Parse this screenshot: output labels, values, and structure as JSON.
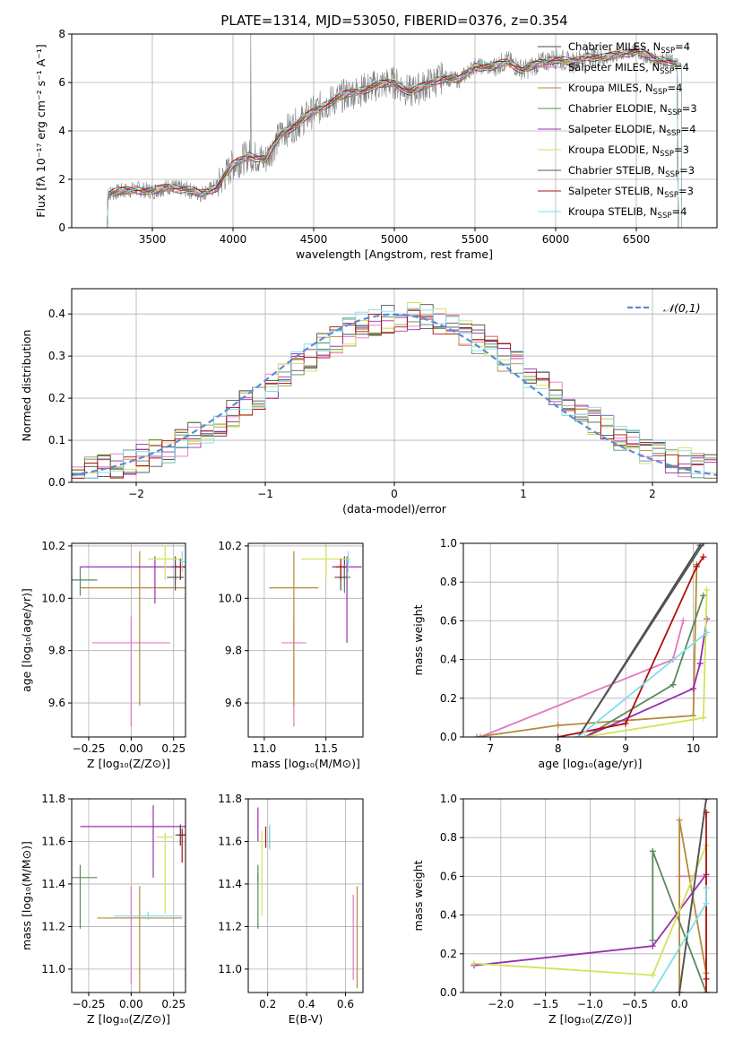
{
  "title": "PLATE=1314, MJD=53050, FIBERID=0376, z=0.354",
  "series": [
    {
      "name": "Chabrier MILES",
      "nssp": "4",
      "color": "#4a4a4a"
    },
    {
      "name": "Salpeter MILES",
      "nssp": "4",
      "color": "#e377c2"
    },
    {
      "name": "Kroupa MILES",
      "nssp": "4",
      "color": "#b58a3a"
    },
    {
      "name": "Chabrier ELODIE",
      "nssp": "3",
      "color": "#5a8a5a"
    },
    {
      "name": "Salpeter ELODIE",
      "nssp": "4",
      "color": "#9a2fb0"
    },
    {
      "name": "Kroupa ELODIE",
      "nssp": "3",
      "color": "#d4e157"
    },
    {
      "name": "Chabrier STELIB",
      "nssp": "3",
      "color": "#555555"
    },
    {
      "name": "Salpeter STELIB",
      "nssp": "3",
      "color": "#b01010"
    },
    {
      "name": "Kroupa STELIB",
      "nssp": "4",
      "color": "#80deea"
    }
  ],
  "chart_data": [
    {
      "id": "spectrum",
      "type": "line",
      "xlabel": "wavelength [Angstrom, rest frame]",
      "ylabel": "Flux [fλ 10⁻¹⁷ erg cm⁻² s⁻¹ A⁻¹]",
      "xlim": [
        3000,
        7000
      ],
      "ylim": [
        0,
        8
      ],
      "xticks": [
        3500,
        4000,
        4500,
        5000,
        5500,
        6000,
        6500
      ],
      "yticks": [
        0,
        2,
        4,
        6,
        8
      ],
      "x": [
        3220,
        3300,
        3400,
        3500,
        3600,
        3700,
        3800,
        3900,
        4000,
        4100,
        4200,
        4300,
        4400,
        4500,
        4600,
        4700,
        4800,
        4900,
        5000,
        5100,
        5200,
        5300,
        5400,
        5500,
        5600,
        5700,
        5800,
        5900,
        6000,
        6100,
        6200,
        6300,
        6400,
        6500,
        6600,
        6700,
        6780
      ],
      "y": [
        1.4,
        1.5,
        1.6,
        1.5,
        1.7,
        1.6,
        1.4,
        1.7,
        2.6,
        3.0,
        2.8,
        3.9,
        4.3,
        4.8,
        5.2,
        5.5,
        5.7,
        5.9,
        6.0,
        5.6,
        5.9,
        6.2,
        6.1,
        6.7,
        6.6,
        6.9,
        6.5,
        6.8,
        7.0,
        6.8,
        7.1,
        7.0,
        7.2,
        7.3,
        7.0,
        6.9,
        6.6
      ]
    },
    {
      "id": "residuals",
      "type": "step",
      "xlabel": "(data-model)/error",
      "ylabel": "Normed distribution",
      "legend": "𝒩(0,1)",
      "xlim": [
        -2.5,
        2.5
      ],
      "ylim": [
        0,
        0.46
      ],
      "xticks": [
        -2,
        -1,
        0,
        1,
        2
      ],
      "yticks": [
        0.0,
        0.1,
        0.2,
        0.3,
        0.4
      ],
      "bin_width": 0.1
    },
    {
      "id": "age_vs_Z",
      "type": "scatter",
      "xlabel": "Z [log₁₀(Z/Z⊙)]",
      "ylabel": "age  [log₁₀(age/yr)]",
      "xlim": [
        -0.35,
        0.32
      ],
      "ylim": [
        9.47,
        10.21
      ],
      "xticks": [
        -0.25,
        0.0,
        0.25
      ],
      "yticks": [
        9.6,
        9.8,
        10.0,
        10.2
      ],
      "points": [
        {
          "s": 0,
          "x": 0.26,
          "y": 10.12,
          "xe": 0.02,
          "yel": 0.05,
          "yeh": 0.04
        },
        {
          "s": 1,
          "x": 0.0,
          "y": 9.83,
          "xe": 0.23,
          "yel": 0.32,
          "yeh": 0.1
        },
        {
          "s": 2,
          "x": 0.05,
          "y": 10.04,
          "xe": 0.35,
          "yel": 0.45,
          "yeh": 0.14
        },
        {
          "s": 3,
          "x": -0.3,
          "y": 10.07,
          "xe": 0.1,
          "yel": 0.06,
          "yeh": 0.05
        },
        {
          "s": 4,
          "x": 0.14,
          "y": 10.12,
          "xe": 0.44,
          "yel": 0.14,
          "yeh": 0.04
        },
        {
          "s": 5,
          "x": 0.2,
          "y": 10.15,
          "xe": 0.1,
          "yel": 0.08,
          "yeh": 0.05
        },
        {
          "s": 6,
          "x": 0.26,
          "y": 10.08,
          "xe": 0.05,
          "yel": 0.05,
          "yeh": 0.05
        },
        {
          "s": 7,
          "x": 0.29,
          "y": 10.12,
          "xe": 0.03,
          "yel": 0.05,
          "yeh": 0.03
        },
        {
          "s": 8,
          "x": 0.3,
          "y": 10.14,
          "xe": 0.02,
          "yel": 0.04,
          "yeh": 0.04
        }
      ]
    },
    {
      "id": "age_vs_mass",
      "type": "scatter",
      "xlabel": "mass [log₁₀(M/M⊙)]",
      "ylabel": "",
      "xlim": [
        10.87,
        11.8
      ],
      "ylim": [
        9.47,
        10.21
      ],
      "xticks": [
        11.0,
        11.5
      ],
      "yticks": [
        9.6,
        9.8,
        10.0,
        10.2
      ],
      "points": [
        {
          "s": 0,
          "x": 11.65,
          "y": 10.12,
          "xe": 0.03,
          "yel": 0.05,
          "yeh": 0.04
        },
        {
          "s": 1,
          "x": 11.24,
          "y": 9.83,
          "xe": 0.1,
          "yel": 0.32,
          "yeh": 0.1
        },
        {
          "s": 2,
          "x": 11.24,
          "y": 10.04,
          "xe": 0.2,
          "yel": 0.45,
          "yeh": 0.14
        },
        {
          "s": 3,
          "x": 11.65,
          "y": 10.08,
          "xe": 0.05,
          "yel": 0.06,
          "yeh": 0.05
        },
        {
          "s": 4,
          "x": 11.67,
          "y": 10.12,
          "xe": 0.12,
          "yel": 0.29,
          "yeh": 0.04
        },
        {
          "s": 5,
          "x": 11.5,
          "y": 10.15,
          "xe": 0.2,
          "yel": 0.08,
          "yeh": 0.05
        },
        {
          "s": 6,
          "x": 11.62,
          "y": 10.08,
          "xe": 0.05,
          "yel": 0.05,
          "yeh": 0.05
        },
        {
          "s": 7,
          "x": 11.62,
          "y": 10.12,
          "xe": 0.04,
          "yel": 0.05,
          "yeh": 0.03
        },
        {
          "s": 8,
          "x": 11.68,
          "y": 10.14,
          "xe": 0.02,
          "yel": 0.04,
          "yeh": 0.04
        }
      ]
    },
    {
      "id": "weight_vs_age",
      "type": "line",
      "xlabel": "age  [log₁₀(age/yr)]",
      "ylabel": "mass weight",
      "xlim": [
        6.6,
        10.35
      ],
      "ylim": [
        0,
        1
      ],
      "xticks": [
        7,
        8,
        9,
        10
      ],
      "yticks": [
        0.0,
        0.2,
        0.4,
        0.6,
        0.8,
        1.0
      ],
      "lines": [
        {
          "s": 0,
          "x": [
            8.3,
            10.1
          ],
          "y": [
            0.0,
            0.99
          ]
        },
        {
          "s": 1,
          "x": [
            6.85,
            9.7,
            9.85
          ],
          "y": [
            0.0,
            0.4,
            0.6
          ]
        },
        {
          "s": 2,
          "x": [
            6.8,
            8.0,
            10.0,
            10.05
          ],
          "y": [
            0.0,
            0.06,
            0.11,
            0.89
          ]
        },
        {
          "s": 3,
          "x": [
            8.4,
            9.7,
            10.15
          ],
          "y": [
            0.0,
            0.27,
            0.73
          ]
        },
        {
          "s": 4,
          "x": [
            8.4,
            10.0,
            10.1,
            10.2
          ],
          "y": [
            0.0,
            0.25,
            0.38,
            0.61
          ]
        },
        {
          "s": 5,
          "x": [
            8.4,
            10.0,
            10.15,
            10.2
          ],
          "y": [
            0.0,
            0.09,
            0.1,
            0.76
          ]
        },
        {
          "s": 6,
          "x": [
            8.3,
            10.15
          ],
          "y": [
            0.0,
            1.0
          ]
        },
        {
          "s": 7,
          "x": [
            8.0,
            9.0,
            10.05,
            10.15
          ],
          "y": [
            0.0,
            0.07,
            0.88,
            0.93
          ]
        },
        {
          "s": 8,
          "x": [
            8.3,
            10.2
          ],
          "y": [
            0.0,
            0.54
          ]
        }
      ]
    },
    {
      "id": "mass_vs_Z",
      "type": "scatter",
      "xlabel": "Z [log₁₀(Z/Z⊙)]",
      "ylabel": "mass [log₁₀(M/M⊙)]",
      "xlim": [
        -0.35,
        0.32
      ],
      "ylim": [
        10.89,
        11.8
      ],
      "xticks": [
        -0.25,
        0.0,
        0.25
      ],
      "yticks": [
        11.0,
        11.2,
        11.4,
        11.6,
        11.8
      ],
      "points": [
        {
          "s": 0,
          "x": 0.29,
          "y": 11.63,
          "xe": 0.02,
          "yel": 0.05,
          "yeh": 0.05
        },
        {
          "s": 1,
          "x": 0.0,
          "y": 11.24,
          "xe": 0.1,
          "yel": 0.31,
          "yeh": 0.15
        },
        {
          "s": 2,
          "x": 0.05,
          "y": 11.24,
          "xe": 0.25,
          "yel": 0.35,
          "yeh": 0.15
        },
        {
          "s": 3,
          "x": -0.3,
          "y": 11.43,
          "xe": 0.1,
          "yel": 0.24,
          "yeh": 0.06
        },
        {
          "s": 4,
          "x": 0.13,
          "y": 11.67,
          "xe": 0.43,
          "yel": 0.24,
          "yeh": 0.1
        },
        {
          "s": 5,
          "x": 0.2,
          "y": 11.62,
          "xe": 0.05,
          "yel": 0.36,
          "yeh": 0.02
        },
        {
          "s": 6,
          "x": 0.29,
          "y": 11.63,
          "xe": 0.03,
          "yel": 0.05,
          "yeh": 0.04
        },
        {
          "s": 7,
          "x": 0.3,
          "y": 11.63,
          "xe": 0.02,
          "yel": 0.13,
          "yeh": 0.03
        },
        {
          "s": 8,
          "x": 0.1,
          "y": 11.25,
          "xe": 0.2,
          "yel": 0.02,
          "yeh": 0.02
        }
      ]
    },
    {
      "id": "mass_vs_EBV",
      "type": "scatter",
      "xlabel": "E(B-V)",
      "ylabel": "",
      "xlim": [
        0.1,
        0.69
      ],
      "ylim": [
        10.89,
        11.8
      ],
      "xticks": [
        0.2,
        0.4,
        0.6
      ],
      "yticks": [
        11.0,
        11.2,
        11.4,
        11.6,
        11.8
      ],
      "points": [
        {
          "s": 0,
          "x": 0.15,
          "y": 11.43,
          "xe": 0,
          "yel": 0.02,
          "yeh": 0.02
        },
        {
          "s": 1,
          "x": 0.64,
          "y": 11.15,
          "xe": 0,
          "yel": 0.2,
          "yeh": 0.2
        },
        {
          "s": 2,
          "x": 0.66,
          "y": 11.15,
          "xe": 0,
          "yel": 0.24,
          "yeh": 0.24
        },
        {
          "s": 3,
          "x": 0.15,
          "y": 11.43,
          "xe": 0,
          "yel": 0.24,
          "yeh": 0.06
        },
        {
          "s": 4,
          "x": 0.15,
          "y": 11.68,
          "xe": 0,
          "yel": 0.08,
          "yeh": 0.08
        },
        {
          "s": 5,
          "x": 0.17,
          "y": 11.45,
          "xe": 0,
          "yel": 0.2,
          "yeh": 0.2
        },
        {
          "s": 6,
          "x": 0.21,
          "y": 11.62,
          "xe": 0,
          "yel": 0.05,
          "yeh": 0.05
        },
        {
          "s": 7,
          "x": 0.19,
          "y": 11.62,
          "xe": 0,
          "yel": 0.05,
          "yeh": 0.05
        },
        {
          "s": 8,
          "x": 0.21,
          "y": 11.62,
          "xe": 0,
          "yel": 0.06,
          "yeh": 0.06
        }
      ]
    },
    {
      "id": "weight_vs_Z",
      "type": "line",
      "xlabel": "Z [log₁₀(Z/Z⊙)]",
      "ylabel": "mass weight",
      "xlim": [
        -2.42,
        0.42
      ],
      "ylim": [
        0,
        1
      ],
      "xticks": [
        -2.0,
        -1.5,
        -1.0,
        -0.5,
        0.0
      ],
      "yticks": [
        0.0,
        0.2,
        0.4,
        0.6,
        0.8,
        1.0
      ],
      "lines": [
        {
          "s": 0,
          "x": [
            0.0,
            0.3
          ],
          "y": [
            0.0,
            1.0
          ]
        },
        {
          "s": 1,
          "x": [
            0.0,
            0.3
          ],
          "y": [
            0.6,
            0.6
          ]
        },
        {
          "s": 2,
          "x": [
            0.0,
            0.0,
            0.3
          ],
          "y": [
            0.0,
            0.89,
            0.1
          ]
        },
        {
          "s": 3,
          "x": [
            -0.3,
            -0.3,
            0.3
          ],
          "y": [
            0.27,
            0.73,
            0.0
          ]
        },
        {
          "s": 4,
          "x": [
            -2.3,
            -0.3,
            0.3,
            0.3
          ],
          "y": [
            0.14,
            0.24,
            0.61,
            0.0
          ]
        },
        {
          "s": 5,
          "x": [
            -2.3,
            -0.3,
            0.3,
            0.3
          ],
          "y": [
            0.15,
            0.09,
            0.76,
            0.0
          ]
        },
        {
          "s": 6,
          "x": [
            0.0,
            0.3
          ],
          "y": [
            0.0,
            1.0
          ]
        },
        {
          "s": 7,
          "x": [
            0.3,
            0.3,
            0.3
          ],
          "y": [
            0.0,
            0.07,
            0.93
          ]
        },
        {
          "s": 8,
          "x": [
            -0.3,
            0.3,
            0.3
          ],
          "y": [
            0.0,
            0.46,
            0.54
          ]
        }
      ]
    }
  ]
}
